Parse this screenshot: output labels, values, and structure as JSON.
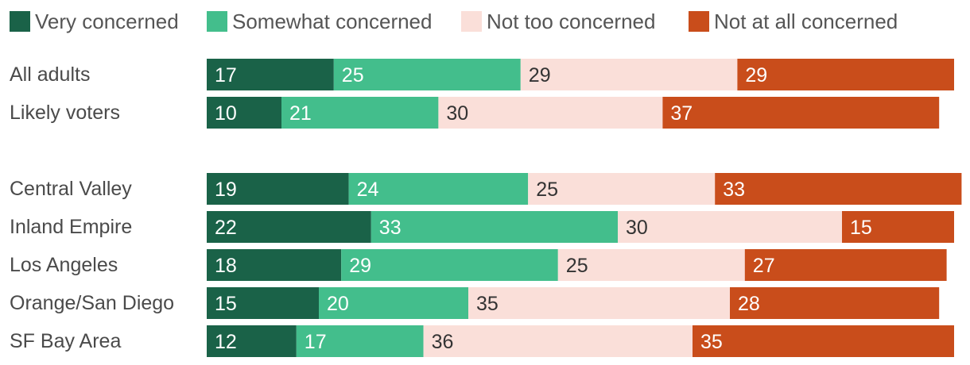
{
  "chart_data": {
    "type": "bar",
    "orientation": "horizontal",
    "stacked": true,
    "series": [
      {
        "name": "Very concerned",
        "color": "#1a6248",
        "label_color": "#ffffff"
      },
      {
        "name": "Somewhat concerned",
        "color": "#43be8c",
        "label_color": "#ffffff"
      },
      {
        "name": "Not too concerned",
        "color": "#fadfd9",
        "label_color": "#333333"
      },
      {
        "name": "Not at all concerned",
        "color": "#c94d1b",
        "label_color": "#ffffff"
      }
    ],
    "categories": [
      {
        "label": "All adults",
        "values": [
          17,
          25,
          29,
          29
        ]
      },
      {
        "label": "Likely voters",
        "values": [
          10,
          21,
          30,
          37
        ]
      },
      {
        "label": "Central Valley",
        "values": [
          19,
          24,
          25,
          33
        ]
      },
      {
        "label": "Inland Empire",
        "values": [
          22,
          33,
          30,
          15
        ]
      },
      {
        "label": "Los Angeles",
        "values": [
          18,
          29,
          25,
          27
        ]
      },
      {
        "label": "Orange/San Diego",
        "values": [
          15,
          20,
          35,
          28
        ]
      },
      {
        "label": "SF Bay Area",
        "values": [
          12,
          17,
          36,
          35
        ]
      }
    ],
    "group_breaks_after": [
      1
    ],
    "legend_position": "top-left",
    "xlim": [
      0,
      100
    ],
    "title": "",
    "xlabel": "",
    "ylabel": ""
  }
}
